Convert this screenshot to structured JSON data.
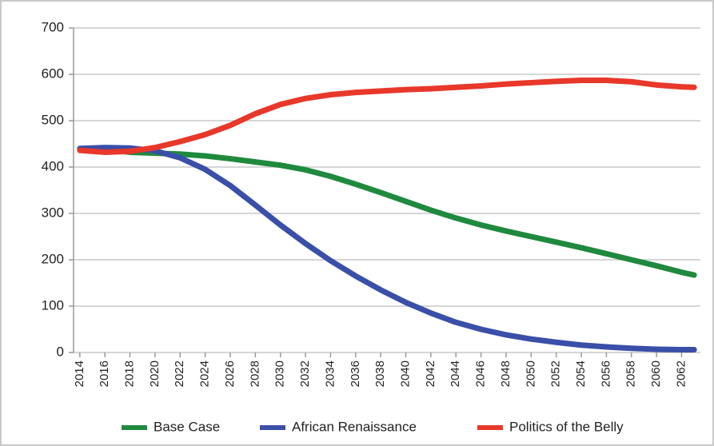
{
  "chart_data": {
    "type": "line",
    "x": [
      2014,
      2016,
      2018,
      2020,
      2022,
      2024,
      2026,
      2028,
      2030,
      2032,
      2034,
      2036,
      2038,
      2040,
      2042,
      2044,
      2046,
      2048,
      2050,
      2052,
      2054,
      2056,
      2058,
      2060,
      2062,
      2063
    ],
    "series": [
      {
        "name": "Base Case",
        "color": "#1f8a3e",
        "values": [
          437,
          438,
          432,
          430,
          428,
          424,
          418,
          411,
          404,
          394,
          380,
          363,
          345,
          326,
          307,
          290,
          275,
          262,
          250,
          238,
          226,
          213,
          200,
          187,
          173,
          167
        ]
      },
      {
        "name": "African Renaissance",
        "color": "#3a4fa8",
        "values": [
          440,
          442,
          441,
          435,
          420,
          395,
          360,
          318,
          275,
          235,
          198,
          165,
          135,
          108,
          85,
          65,
          50,
          38,
          29,
          22,
          16,
          12,
          9,
          7,
          6,
          6
        ]
      },
      {
        "name": "Politics of the Belly",
        "color": "#e8382a",
        "values": [
          436,
          432,
          434,
          442,
          455,
          470,
          490,
          515,
          535,
          548,
          556,
          561,
          564,
          567,
          569,
          572,
          575,
          579,
          582,
          585,
          587,
          587,
          584,
          577,
          573,
          572
        ]
      }
    ],
    "xlim": [
      2013.5,
      2063.5
    ],
    "xticks": [
      2014,
      2016,
      2018,
      2020,
      2022,
      2024,
      2026,
      2028,
      2030,
      2032,
      2034,
      2036,
      2038,
      2040,
      2042,
      2044,
      2046,
      2048,
      2050,
      2052,
      2054,
      2056,
      2058,
      2060,
      2062
    ],
    "ylim": [
      0,
      700
    ],
    "yticks": [
      0,
      100,
      200,
      300,
      400,
      500,
      600,
      700
    ],
    "grid": true,
    "legend": "bottom"
  }
}
